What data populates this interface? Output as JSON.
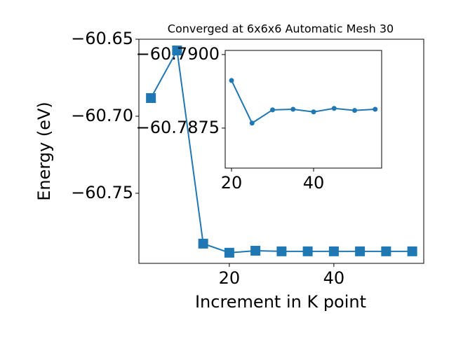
{
  "chart_data": [
    {
      "type": "line",
      "title": "Converged at 6x6x6 Automatic Mesh 30",
      "xlabel": "Increment in K point",
      "ylabel": "Energy (eV)",
      "x": [
        5,
        10,
        15,
        20,
        25,
        30,
        35,
        40,
        45,
        50,
        55
      ],
      "values": [
        -60.6882,
        -60.6573,
        -60.7827,
        -60.7886,
        -60.7873,
        -60.7877,
        -60.7877,
        -60.7877,
        -60.7877,
        -60.7877,
        -60.7877
      ],
      "color": "#1f77b4",
      "marker": "square",
      "xlim": [
        2.7,
        57.2
      ],
      "ylim": [
        -60.7955,
        -60.65
      ],
      "xticks": [
        20,
        40
      ],
      "yticks": [
        {
          "value": -60.65,
          "label": "−60.65"
        },
        {
          "value": -60.7,
          "label": "−60.70"
        },
        {
          "value": -60.75,
          "label": "−60.75"
        }
      ]
    },
    {
      "type": "line",
      "x": [
        20,
        25,
        30,
        35,
        40,
        45,
        50,
        55
      ],
      "values": [
        -60.78912,
        -60.78767,
        -60.78812,
        -60.78814,
        -60.78805,
        -60.78817,
        -60.7881,
        -60.78814
      ],
      "color": "#1f77b4",
      "marker": "circle",
      "xlim": [
        18.46,
        56.58
      ],
      "ylim": [
        -60.78614,
        -60.79014
      ],
      "xticks": [
        20,
        40
      ],
      "yticks": [
        {
          "value": -60.79,
          "label": "−60.7900"
        },
        {
          "value": -60.7875,
          "label": "−60.7875"
        }
      ]
    }
  ]
}
